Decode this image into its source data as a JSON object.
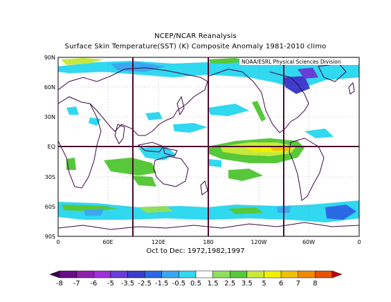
{
  "title_line1": "NCEP/NCAR Reanalysis",
  "title_line2": "Surface Skin Temperature(SST) (K) Composite Anomaly 1981-2010 climo",
  "credit": "NOAA/ESRL Physical Sciences Division",
  "caption": "Oct to Dec: 1972,1982,1997",
  "lat_labels": [
    "90N",
    "60N",
    "30N",
    "EQ",
    "30S",
    "60S",
    "90S"
  ],
  "lon_labels": [
    "0",
    "60E",
    "120E",
    "180",
    "120W",
    "60W",
    "0"
  ],
  "colorbar": {
    "labels": [
      "-8",
      "-7",
      "-6",
      "-5",
      "-3.5",
      "-2.5",
      "-1.5",
      "-0.5",
      "0.5",
      "1.5",
      "2.5",
      "3.5",
      "5",
      "6",
      "7",
      "8"
    ],
    "colors": [
      "#3b0050",
      "#6a0d8a",
      "#8e1fb0",
      "#a030d8",
      "#6a3cd8",
      "#3c3ccc",
      "#2a68e6",
      "#3ca6f0",
      "#30d8f0",
      "#ffffff",
      "#8ee05a",
      "#56c83a",
      "#c8e83c",
      "#f0f000",
      "#f0c000",
      "#f08a00",
      "#e85000",
      "#c80000"
    ]
  },
  "colors": {
    "grid_line": "#4a0a2e",
    "coast": "#3a0540",
    "land": "#ffffff"
  }
}
